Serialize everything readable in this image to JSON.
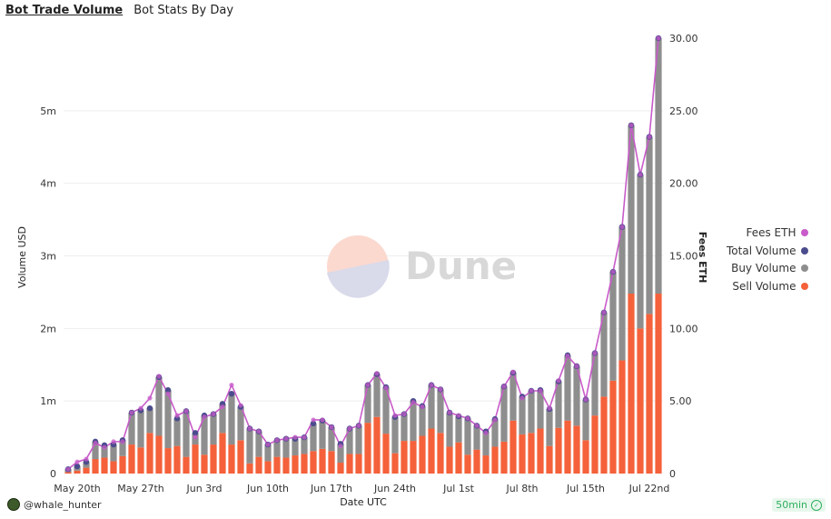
{
  "tabs": [
    {
      "label": "Bot Trade Volume",
      "active": true
    },
    {
      "label": "Bot Stats By Day",
      "active": false
    }
  ],
  "footer": {
    "user": "@whale_hunter",
    "refresh_badge": "50min",
    "avatar_icon": "avatar-icon",
    "check_icon": "check-circle-icon"
  },
  "watermark": "Dune",
  "colors": {
    "sell": "#f4613a",
    "buy": "#8e8e8e",
    "total": "#4b4c8d",
    "fees": "#c85bc9",
    "grid": "#eeeeee"
  },
  "chart_data": {
    "type": "bar",
    "xlabel": "Date UTC",
    "ylabel": "Volume USD",
    "y2label": "Fees ETH",
    "ylim": [
      0,
      6000000
    ],
    "y2lim": [
      0,
      30
    ],
    "yticks": [
      0,
      1000000,
      2000000,
      3000000,
      4000000,
      5000000
    ],
    "ytick_labels": [
      "0",
      "1m",
      "2m",
      "3m",
      "4m",
      "5m"
    ],
    "y2ticks": [
      0,
      5,
      10,
      15,
      20,
      25,
      30
    ],
    "y2tick_labels": [
      "0",
      "5.00",
      "10.00",
      "15.00",
      "20.00",
      "25.00",
      "30.00"
    ],
    "x_tick_labels": [
      "May 20th",
      "May 27th",
      "Jun 3rd",
      "Jun 10th",
      "Jun 17th",
      "Jun 24th",
      "Jul 1st",
      "Jul 8th",
      "Jul 15th",
      "Jul 22nd"
    ],
    "x_tick_indices": [
      1,
      8,
      15,
      22,
      29,
      36,
      43,
      50,
      57,
      64
    ],
    "legend": [
      "Fees ETH",
      "Total Volume",
      "Buy Volume",
      "Sell Volume"
    ],
    "legend_position": "right",
    "categories": [
      "May 19",
      "May 20",
      "May 21",
      "May 22",
      "May 23",
      "May 24",
      "May 25",
      "May 26",
      "May 27",
      "May 28",
      "May 29",
      "May 30",
      "May 31",
      "Jun 1",
      "Jun 2",
      "Jun 3",
      "Jun 4",
      "Jun 5",
      "Jun 6",
      "Jun 7",
      "Jun 8",
      "Jun 9",
      "Jun 10",
      "Jun 11",
      "Jun 12",
      "Jun 13",
      "Jun 14",
      "Jun 15",
      "Jun 16",
      "Jun 17",
      "Jun 18",
      "Jun 19",
      "Jun 20",
      "Jun 21",
      "Jun 22",
      "Jun 23",
      "Jun 24",
      "Jun 25",
      "Jun 26",
      "Jun 27",
      "Jun 28",
      "Jun 29",
      "Jun 30",
      "Jul 1",
      "Jul 2",
      "Jul 3",
      "Jul 4",
      "Jul 5",
      "Jul 6",
      "Jul 7",
      "Jul 8",
      "Jul 9",
      "Jul 10",
      "Jul 11",
      "Jul 12",
      "Jul 13",
      "Jul 14",
      "Jul 15",
      "Jul 16",
      "Jul 17",
      "Jul 18",
      "Jul 19",
      "Jul 20",
      "Jul 21",
      "Jul 22",
      "Jul 23"
    ],
    "series": [
      {
        "name": "Sell Volume",
        "values": [
          20000,
          40000,
          80000,
          200000,
          220000,
          170000,
          240000,
          400000,
          360000,
          560000,
          520000,
          350000,
          380000,
          230000,
          400000,
          260000,
          400000,
          560000,
          400000,
          460000,
          140000,
          230000,
          170000,
          230000,
          220000,
          250000,
          270000,
          310000,
          340000,
          310000,
          150000,
          270000,
          270000,
          700000,
          780000,
          550000,
          280000,
          450000,
          450000,
          520000,
          620000,
          560000,
          370000,
          430000,
          260000,
          330000,
          250000,
          370000,
          440000,
          730000,
          540000,
          560000,
          620000,
          380000,
          630000,
          730000,
          660000,
          460000,
          800000,
          1060000,
          1280000,
          1560000,
          2480000,
          2000000,
          2200000,
          2480000
        ]
      },
      {
        "name": "Buy Volume",
        "values": [
          40000,
          60000,
          80000,
          240000,
          170000,
          230000,
          220000,
          440000,
          510000,
          340000,
          810000,
          800000,
          380000,
          630000,
          160000,
          540000,
          420000,
          400000,
          700000,
          460000,
          480000,
          350000,
          230000,
          230000,
          260000,
          230000,
          230000,
          380000,
          390000,
          330000,
          260000,
          350000,
          390000,
          520000,
          590000,
          640000,
          500000,
          370000,
          550000,
          410000,
          600000,
          600000,
          470000,
          360000,
          500000,
          330000,
          330000,
          380000,
          760000,
          660000,
          520000,
          580000,
          530000,
          510000,
          640000,
          900000,
          820000,
          560000,
          860000,
          1160000,
          1500000,
          1840000,
          2320000,
          2120000,
          2440000,
          3520000
        ]
      },
      {
        "name": "Total Volume",
        "values": [
          60000,
          100000,
          160000,
          440000,
          390000,
          400000,
          460000,
          840000,
          870000,
          900000,
          1330000,
          1150000,
          760000,
          860000,
          560000,
          800000,
          820000,
          960000,
          1100000,
          920000,
          620000,
          580000,
          400000,
          460000,
          480000,
          480000,
          500000,
          690000,
          730000,
          640000,
          410000,
          620000,
          660000,
          1220000,
          1370000,
          1190000,
          780000,
          820000,
          1000000,
          930000,
          1220000,
          1160000,
          840000,
          790000,
          760000,
          660000,
          580000,
          750000,
          1200000,
          1390000,
          1060000,
          1140000,
          1150000,
          890000,
          1270000,
          1630000,
          1480000,
          1020000,
          1660000,
          2220000,
          2780000,
          3400000,
          4800000,
          4120000,
          4640000,
          6000000
        ]
      },
      {
        "name": "Fees ETH",
        "values": [
          0.3,
          0.8,
          1.0,
          2.1,
          1.8,
          2.2,
          2.2,
          4.2,
          4.5,
          5.2,
          6.7,
          5.5,
          4.0,
          4.3,
          2.5,
          3.9,
          4.1,
          4.6,
          6.1,
          4.7,
          3.1,
          2.9,
          2.0,
          2.3,
          2.4,
          2.5,
          2.5,
          3.7,
          3.7,
          3.2,
          1.9,
          3.1,
          3.3,
          6.1,
          6.9,
          5.9,
          4.0,
          4.1,
          4.9,
          4.6,
          6.1,
          5.8,
          4.2,
          4.0,
          3.8,
          3.3,
          2.8,
          3.7,
          6.0,
          7.0,
          5.2,
          5.7,
          5.7,
          4.5,
          6.4,
          8.1,
          7.4,
          5.1,
          8.3,
          11.1,
          13.9,
          17.0,
          24.0,
          20.6,
          23.2,
          30.0
        ]
      }
    ]
  }
}
